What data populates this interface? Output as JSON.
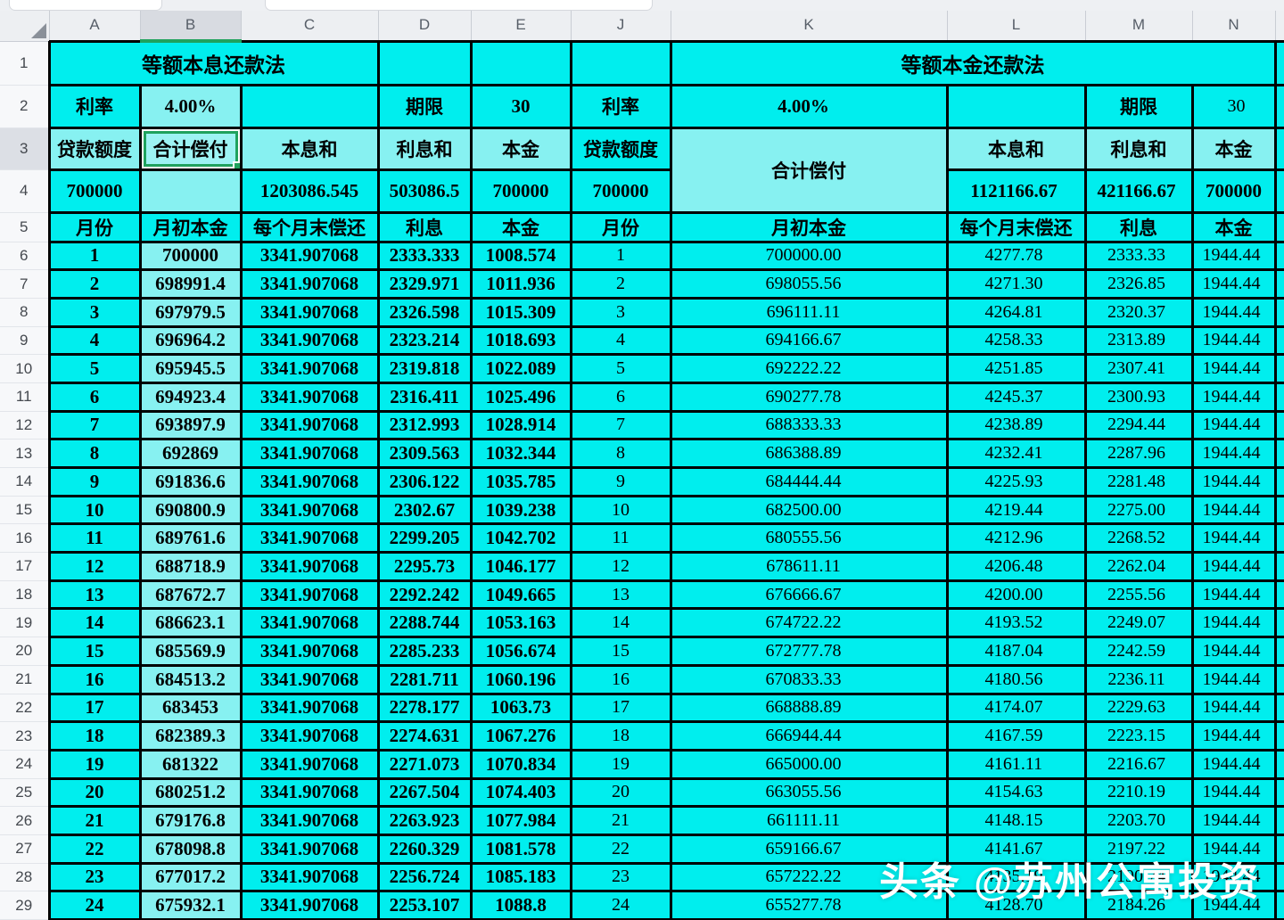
{
  "ui": {
    "column_headers": [
      "A",
      "B",
      "C",
      "D",
      "E",
      "J",
      "K",
      "L",
      "M",
      "N"
    ],
    "row_numbers": [
      1,
      2,
      3,
      4,
      5,
      6,
      7,
      8,
      9,
      10,
      11,
      12,
      13,
      14,
      15,
      16,
      17,
      18,
      19,
      20,
      21,
      22,
      23,
      24,
      25,
      26,
      27,
      28,
      29
    ],
    "selected_column": "B",
    "selected_row": 3,
    "accent_green": "#1fa25d",
    "cyan_bright": "#00eeee",
    "cyan_light": "#87f1f1"
  },
  "left_table": {
    "title": "等额本息还款法",
    "rate_label": "利率",
    "rate_value": "4.00%",
    "term_label": "期限",
    "term_value": "30",
    "loan_label": "贷款额度",
    "total_label": "合计偿付",
    "pi_label": "本息和",
    "interest_label": "利息和",
    "principal_label": "本金",
    "loan_value": "700000",
    "pi_total": "1203086.545",
    "interest_total": "503086.5",
    "principal_total": "700000",
    "month_label": "月份",
    "balance_label": "月初本金",
    "payment_label": "每个月末偿还",
    "int_col_label": "利息",
    "prin_col_label": "本金",
    "payment": "3341.907068",
    "rows": [
      [
        "1",
        "700000",
        "2333.333",
        "1008.574"
      ],
      [
        "2",
        "698991.4",
        "2329.971",
        "1011.936"
      ],
      [
        "3",
        "697979.5",
        "2326.598",
        "1015.309"
      ],
      [
        "4",
        "696964.2",
        "2323.214",
        "1018.693"
      ],
      [
        "5",
        "695945.5",
        "2319.818",
        "1022.089"
      ],
      [
        "6",
        "694923.4",
        "2316.411",
        "1025.496"
      ],
      [
        "7",
        "693897.9",
        "2312.993",
        "1028.914"
      ],
      [
        "8",
        "692869",
        "2309.563",
        "1032.344"
      ],
      [
        "9",
        "691836.6",
        "2306.122",
        "1035.785"
      ],
      [
        "10",
        "690800.9",
        "2302.67",
        "1039.238"
      ],
      [
        "11",
        "689761.6",
        "2299.205",
        "1042.702"
      ],
      [
        "12",
        "688718.9",
        "2295.73",
        "1046.177"
      ],
      [
        "13",
        "687672.7",
        "2292.242",
        "1049.665"
      ],
      [
        "14",
        "686623.1",
        "2288.744",
        "1053.163"
      ],
      [
        "15",
        "685569.9",
        "2285.233",
        "1056.674"
      ],
      [
        "16",
        "684513.2",
        "2281.711",
        "1060.196"
      ],
      [
        "17",
        "683453",
        "2278.177",
        "1063.73"
      ],
      [
        "18",
        "682389.3",
        "2274.631",
        "1067.276"
      ],
      [
        "19",
        "681322",
        "2271.073",
        "1070.834"
      ],
      [
        "20",
        "680251.2",
        "2267.504",
        "1074.403"
      ],
      [
        "21",
        "679176.8",
        "2263.923",
        "1077.984"
      ],
      [
        "22",
        "678098.8",
        "2260.329",
        "1081.578"
      ],
      [
        "23",
        "677017.2",
        "2256.724",
        "1085.183"
      ],
      [
        "24",
        "675932.1",
        "2253.107",
        "1088.8"
      ]
    ]
  },
  "right_table": {
    "title": "等额本金还款法",
    "rate_label": "利率",
    "rate_value": "4.00%",
    "term_label": "期限",
    "term_value": "30",
    "loan_label": "贷款额度",
    "total_label": "合计偿付",
    "pi_label": "本息和",
    "interest_label": "利息和",
    "principal_label": "本金",
    "loan_value": "700000",
    "pi_total": "1121166.67",
    "interest_total": "421166.67",
    "principal_total": "700000",
    "month_label": "月份",
    "balance_label": "月初本金",
    "payment_label": "每个月末偿还",
    "int_col_label": "利息",
    "prin_col_label": "本金",
    "principal": "1944.44",
    "rows": [
      [
        "700000.00",
        "4277.78",
        "2333.33"
      ],
      [
        "698055.56",
        "4271.30",
        "2326.85"
      ],
      [
        "696111.11",
        "4264.81",
        "2320.37"
      ],
      [
        "694166.67",
        "4258.33",
        "2313.89"
      ],
      [
        "692222.22",
        "4251.85",
        "2307.41"
      ],
      [
        "690277.78",
        "4245.37",
        "2300.93"
      ],
      [
        "688333.33",
        "4238.89",
        "2294.44"
      ],
      [
        "686388.89",
        "4232.41",
        "2287.96"
      ],
      [
        "684444.44",
        "4225.93",
        "2281.48"
      ],
      [
        "682500.00",
        "4219.44",
        "2275.00"
      ],
      [
        "680555.56",
        "4212.96",
        "2268.52"
      ],
      [
        "678611.11",
        "4206.48",
        "2262.04"
      ],
      [
        "676666.67",
        "4200.00",
        "2255.56"
      ],
      [
        "674722.22",
        "4193.52",
        "2249.07"
      ],
      [
        "672777.78",
        "4187.04",
        "2242.59"
      ],
      [
        "670833.33",
        "4180.56",
        "2236.11"
      ],
      [
        "668888.89",
        "4174.07",
        "2229.63"
      ],
      [
        "666944.44",
        "4167.59",
        "2223.15"
      ],
      [
        "665000.00",
        "4161.11",
        "2216.67"
      ],
      [
        "663055.56",
        "4154.63",
        "2210.19"
      ],
      [
        "661111.11",
        "4148.15",
        "2203.70"
      ],
      [
        "659166.67",
        "4141.67",
        "2197.22"
      ],
      [
        "657222.22",
        "4135.19",
        "2190.74"
      ],
      [
        "655277.78",
        "4128.70",
        "2184.26"
      ]
    ]
  },
  "watermark": {
    "text": "头条 @苏州公寓投资"
  }
}
